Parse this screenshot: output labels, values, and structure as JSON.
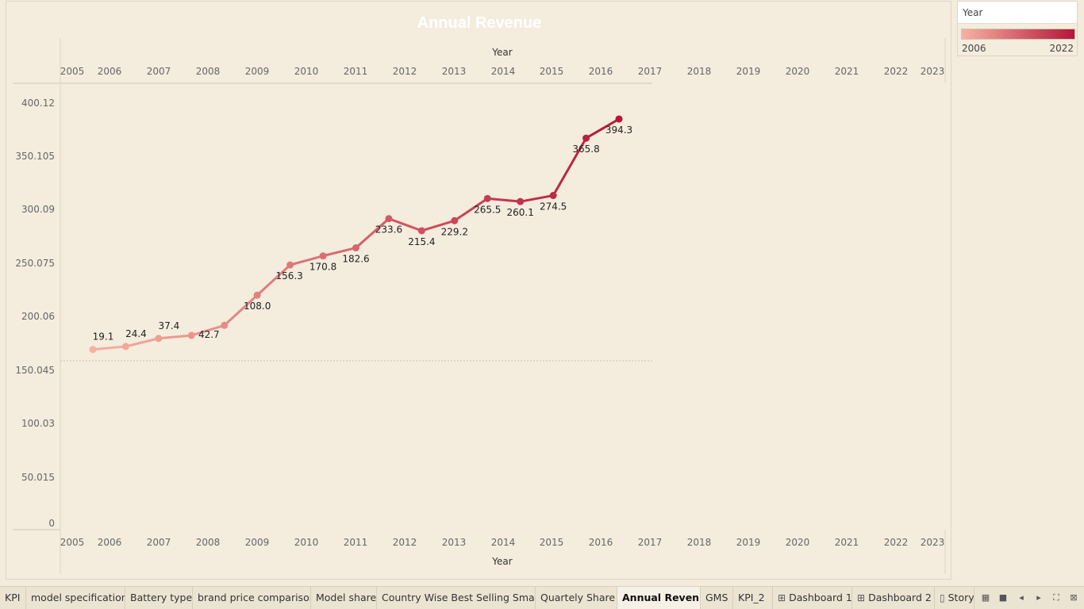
{
  "chart_data": {
    "type": "line",
    "title": "Annual Revenue",
    "xlabel": "Year",
    "ylabel": "",
    "x_ticks": [
      "2005",
      "2006",
      "2007",
      "2008",
      "2009",
      "2010",
      "2011",
      "2012",
      "2013",
      "2014",
      "2015",
      "2016",
      "2017",
      "2018",
      "2019",
      "2020",
      "2021",
      "2022",
      "2023"
    ],
    "y_ticks": [
      "400.12",
      "350.105",
      "300.09",
      "250.075",
      "200.06",
      "150.045",
      "100.03",
      "50.015",
      "0"
    ],
    "ylim": [
      0,
      420
    ],
    "x": [
      2006,
      2007,
      2008,
      2009,
      2010,
      2011,
      2012,
      2013,
      2014,
      2015,
      2016,
      2017,
      2018,
      2019,
      2020,
      2021,
      2022
    ],
    "series": [
      {
        "values": [
          172,
          175,
          183,
          186,
          196,
          226,
          256,
          265,
          273,
          302,
          290,
          300,
          322,
          319,
          325,
          382,
          401
        ],
        "labels": [
          "19.1",
          "24.4",
          "37.4",
          "42.7",
          "",
          "108.0",
          "156.3",
          "170.8",
          "182.6",
          "233.6",
          "215.4",
          "229.2",
          "265.5",
          "260.1",
          "274.5",
          "365.8",
          "394.3"
        ]
      }
    ],
    "grid": false,
    "color_legend": {
      "title": "Year",
      "min": "2006",
      "max": "2022",
      "color_low": "#f6b2a0",
      "color_high": "#b5163a"
    }
  },
  "tabs": [
    {
      "label": "KPI",
      "glyph": ""
    },
    {
      "label": "model specification",
      "glyph": ""
    },
    {
      "label": "Battery type",
      "glyph": ""
    },
    {
      "label": "brand price comparison",
      "glyph": ""
    },
    {
      "label": "Model share",
      "glyph": ""
    },
    {
      "label": "Country Wise Best Selling Smar...",
      "glyph": ""
    },
    {
      "label": "Quartely Share",
      "glyph": ""
    },
    {
      "label": "Annual Revenue",
      "glyph": "",
      "active": true
    },
    {
      "label": "GMS",
      "glyph": ""
    },
    {
      "label": "KPI_2",
      "glyph": ""
    },
    {
      "label": "Dashboard 1",
      "glyph": "⊞"
    },
    {
      "label": "Dashboard 2",
      "glyph": "⊞"
    },
    {
      "label": "Story",
      "glyph": "▯"
    }
  ],
  "controls": [
    "grid-view-icon",
    "filmstrip-icon",
    "prev-icon",
    "next-icon",
    "fit-icon",
    "fullscreen-icon"
  ]
}
